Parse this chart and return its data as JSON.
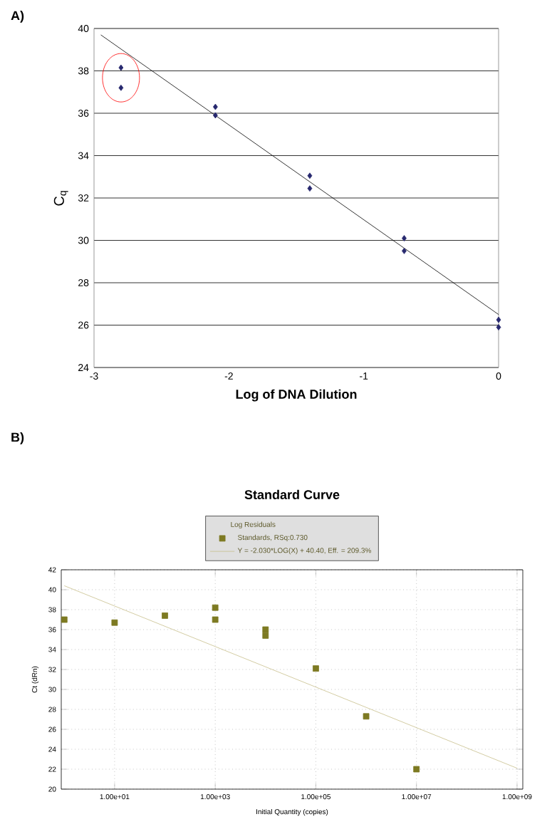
{
  "chart_data": [
    {
      "type": "scatter",
      "annotations": [
        "A)"
      ],
      "xlabel": "Log of DNA Dilution",
      "ylabel": "C$_{q}$",
      "xlim": [
        -3,
        0
      ],
      "xticks": [
        -3,
        -2,
        -1,
        0
      ],
      "ylim": [
        24,
        40
      ],
      "yticks": [
        24,
        26,
        28,
        30,
        32,
        34,
        36,
        38,
        40
      ],
      "grid": "y",
      "marker": "diamond",
      "series": [
        {
          "color": "#27286e",
          "x": [
            -2.8,
            -2.8,
            -2.1,
            -2.1,
            -1.4,
            -1.4,
            -0.7,
            -0.7,
            0,
            0
          ],
          "values": [
            38.15,
            37.2,
            36.3,
            35.9,
            33.05,
            32.45,
            30.1,
            29.5,
            26.25,
            25.9
          ]
        },
        {
          "type": "line",
          "marker": "none",
          "color": "#000000",
          "x": [
            -2.95,
            0
          ],
          "values": [
            39.7,
            26.5
          ]
        }
      ]
    },
    {
      "type": "scatter",
      "title": "Standard Curve",
      "annotations": [
        "B)"
      ],
      "xlabel": "Initial Quantity (copies)",
      "ylabel": "Ct (dRn)",
      "log": "x",
      "xlim": [
        0.87,
        1300000000.0
      ],
      "xticks": [
        {
          "value": 10,
          "label": "1.00e+01"
        },
        {
          "value": 1000,
          "label": "1.00e+03"
        },
        {
          "value": 100000,
          "label": "1.00e+05"
        },
        {
          "value": 10000000,
          "label": "1.00e+07"
        },
        {
          "value": 1000000000,
          "label": "1.00e+09"
        }
      ],
      "ylim": [
        20,
        42
      ],
      "yticks": [
        20,
        22,
        24,
        26,
        28,
        30,
        32,
        34,
        36,
        38,
        40,
        42
      ],
      "grid": true,
      "marker": "square",
      "legend": "top",
      "legend_title": "Log Residuals",
      "series": [
        {
          "name": "Standards, RSq:0.730",
          "color": "#7d7a22",
          "x": [
            1,
            10,
            100,
            1000,
            1000,
            10000,
            10000,
            100000,
            1000000,
            10000000
          ],
          "values": [
            37.0,
            36.7,
            37.4,
            38.2,
            37.0,
            36.0,
            35.4,
            32.1,
            27.3,
            22.0
          ]
        },
        {
          "type": "line",
          "marker": "none",
          "name": "Y = -2.030*LOG(X) + 40.40, Eff. = 209.3%",
          "color": "#c8bf8c",
          "x": [
            1,
            1000000000
          ],
          "values": [
            40.4,
            22.1
          ]
        }
      ]
    }
  ]
}
